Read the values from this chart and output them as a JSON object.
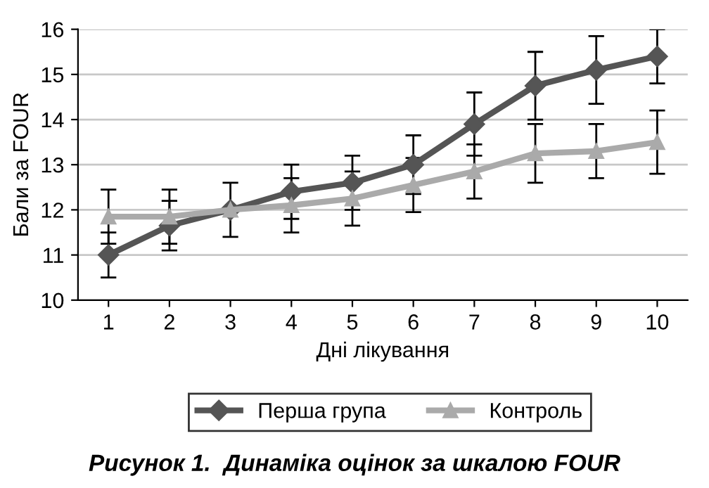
{
  "chart_data": {
    "type": "line",
    "xlabel": "Дні лікування",
    "ylabel": "Бали за FOUR",
    "categories": [
      "1",
      "2",
      "3",
      "4",
      "5",
      "6",
      "7",
      "8",
      "9",
      "10"
    ],
    "series": [
      {
        "name": "Перша група",
        "color": "#555555",
        "marker": "diamond",
        "values": [
          11.0,
          11.65,
          12.0,
          12.4,
          12.6,
          13.0,
          13.9,
          14.75,
          15.1,
          15.4
        ],
        "errors": [
          0.5,
          0.55,
          0.6,
          0.6,
          0.6,
          0.65,
          0.7,
          0.75,
          0.75,
          0.6
        ]
      },
      {
        "name": "Контроль",
        "color": "#aaaaaa",
        "marker": "triangle",
        "values": [
          11.85,
          11.85,
          12.0,
          12.1,
          12.25,
          12.55,
          12.85,
          13.25,
          13.3,
          13.5
        ],
        "errors": [
          0.6,
          0.6,
          null,
          0.6,
          0.6,
          0.6,
          0.6,
          0.65,
          0.6,
          0.7
        ]
      }
    ],
    "ylim": [
      10,
      16
    ],
    "yticks": [
      10,
      11,
      12,
      13,
      14,
      15,
      16
    ],
    "grid": "y",
    "legend": "bottom",
    "annotations": [
      "Рисунок 1.  Динаміка оцінок за шкалою FOUR"
    ]
  }
}
